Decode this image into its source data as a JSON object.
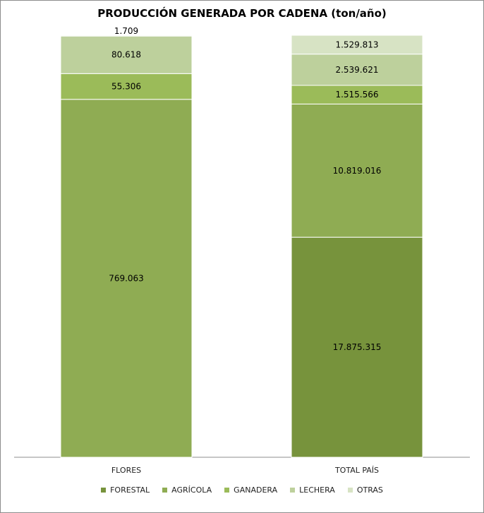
{
  "chart_data": {
    "type": "bar",
    "stacked": "percent",
    "title": "PRODUCCIÓN GENERADA POR CADENA (ton/año)",
    "categories": [
      "FLORES",
      "TOTAL PAÍS"
    ],
    "series": [
      {
        "name": "FORESTAL",
        "color": "#77933c",
        "values": [
          0,
          17875315
        ],
        "labels": [
          "",
          "17.875.315"
        ]
      },
      {
        "name": "AGRÍCOLA",
        "color": "#8fac53",
        "values": [
          769063,
          10819016
        ],
        "labels": [
          "769.063",
          "10.819.016"
        ]
      },
      {
        "name": "GANADERA",
        "color": "#9bbb59",
        "values": [
          55306,
          1515566
        ],
        "labels": [
          "55.306",
          "1.515.566"
        ]
      },
      {
        "name": "LECHERA",
        "color": "#bdd09c",
        "values": [
          80618,
          2539621
        ],
        "labels": [
          "80.618",
          "2.539.621"
        ]
      },
      {
        "name": "OTRAS",
        "color": "#d7e3c4",
        "values": [
          1709,
          1529813
        ],
        "labels": [
          "1.709",
          "1.529.813"
        ]
      }
    ],
    "legend_position": "bottom",
    "grid": false
  }
}
